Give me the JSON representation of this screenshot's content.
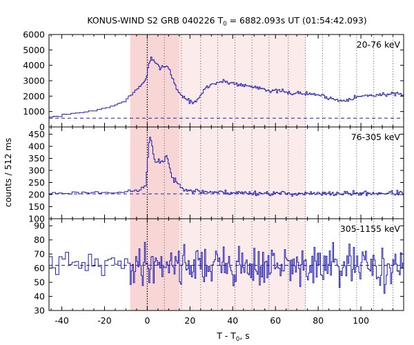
{
  "chart_data": {
    "type": "line",
    "title_prefix": "KONUS-WIND S2 GRB 040226 T",
    "title_sub": "0",
    "title_suffix": " = 6882.093s UT (01:54:42.093)",
    "ylabel": "counts / 512 ms",
    "xlabel_prefix": "T - T",
    "xlabel_sub": "0",
    "xlabel_suffix": ", s",
    "xlim": [
      -46,
      120
    ],
    "xticks": [
      -40,
      -20,
      0,
      20,
      40,
      60,
      80,
      100
    ],
    "grid": false,
    "bin_width_s": 0.512,
    "line_color": "#1c1ab0",
    "shade_outer": {
      "range": [
        -8,
        74
      ],
      "color": "#fcebeb"
    },
    "shade_inner": {
      "range": [
        -8,
        15
      ],
      "color": "#f8d6d6"
    },
    "t0_line": 0,
    "dotted_lines": [
      8,
      16,
      25,
      33,
      41,
      49,
      57,
      66,
      74,
      82,
      90,
      98,
      106,
      115
    ],
    "panels": [
      {
        "label": "20-76 keV",
        "ylim": [
          0,
          6000
        ],
        "yticks": [
          0,
          1000,
          2000,
          3000,
          4000,
          5000,
          6000
        ],
        "background": 570,
        "control_points": [
          [
            -46,
            600
          ],
          [
            -40,
            750
          ],
          [
            -30,
            950
          ],
          [
            -20,
            1200
          ],
          [
            -14,
            1450
          ],
          [
            -10,
            1750
          ],
          [
            -6,
            2250
          ],
          [
            -3,
            2700
          ],
          [
            -1,
            3000
          ],
          [
            0,
            3500
          ],
          [
            1,
            4200
          ],
          [
            2,
            4450
          ],
          [
            4,
            4050
          ],
          [
            6,
            3900
          ],
          [
            8,
            3950
          ],
          [
            10,
            3900
          ],
          [
            11,
            3500
          ],
          [
            13,
            2700
          ],
          [
            15,
            2200
          ],
          [
            17,
            1950
          ],
          [
            20,
            1650
          ],
          [
            22,
            1550
          ],
          [
            24,
            1800
          ],
          [
            27,
            2500
          ],
          [
            30,
            2750
          ],
          [
            33,
            2900
          ],
          [
            36,
            2950
          ],
          [
            40,
            2850
          ],
          [
            45,
            2700
          ],
          [
            50,
            2600
          ],
          [
            55,
            2500
          ],
          [
            58,
            2300
          ],
          [
            62,
            2350
          ],
          [
            66,
            2200
          ],
          [
            70,
            2200
          ],
          [
            75,
            2150
          ],
          [
            80,
            2100
          ],
          [
            85,
            1900
          ],
          [
            90,
            1700
          ],
          [
            94,
            1800
          ],
          [
            98,
            1950
          ],
          [
            104,
            2050
          ],
          [
            110,
            2100
          ],
          [
            115,
            2150
          ],
          [
            120,
            2000
          ]
        ],
        "noise_amp": 130,
        "seed": 7,
        "binning": [
          [
            -46,
            -14,
            4
          ],
          [
            -14,
            -4,
            2
          ],
          [
            -4,
            120,
            1
          ]
        ]
      },
      {
        "label": "76-305 keV",
        "ylim": [
          100,
          480
        ],
        "yticks": [
          100,
          150,
          200,
          250,
          300,
          350,
          400,
          450
        ],
        "background": 203,
        "control_points": [
          [
            -46,
            205
          ],
          [
            -30,
            208
          ],
          [
            -15,
            210
          ],
          [
            -8,
            212
          ],
          [
            -3,
            220
          ],
          [
            -0.5,
            240
          ],
          [
            0,
            330
          ],
          [
            1,
            435
          ],
          [
            2,
            420
          ],
          [
            3,
            360
          ],
          [
            4,
            320
          ],
          [
            5,
            340
          ],
          [
            6,
            335
          ],
          [
            7,
            345
          ],
          [
            8,
            335
          ],
          [
            9,
            370
          ],
          [
            10,
            330
          ],
          [
            11,
            290
          ],
          [
            12,
            265
          ],
          [
            13,
            255
          ],
          [
            15,
            240
          ],
          [
            17,
            228
          ],
          [
            20,
            218
          ],
          [
            25,
            212
          ],
          [
            40,
            208
          ],
          [
            60,
            205
          ],
          [
            80,
            203
          ],
          [
            100,
            205
          ],
          [
            120,
            207
          ]
        ],
        "noise_amp": 12,
        "seed": 23,
        "binning": [
          [
            -46,
            -10,
            3
          ],
          [
            -10,
            -2,
            2
          ],
          [
            -2,
            120,
            1
          ]
        ]
      },
      {
        "label": "305-1155 keV",
        "ylim": [
          30,
          95
        ],
        "yticks": [
          30,
          40,
          50,
          60,
          70,
          80,
          90
        ],
        "background": 62,
        "control_points": [
          [
            -46,
            63
          ],
          [
            -10,
            62
          ],
          [
            0,
            63
          ],
          [
            10,
            64
          ],
          [
            30,
            62
          ],
          [
            60,
            61
          ],
          [
            90,
            61
          ],
          [
            120,
            60
          ]
        ],
        "noise_amp": 14,
        "seed": 41,
        "binning": [
          [
            -46,
            -8,
            3
          ],
          [
            -8,
            120,
            1
          ]
        ]
      }
    ]
  }
}
